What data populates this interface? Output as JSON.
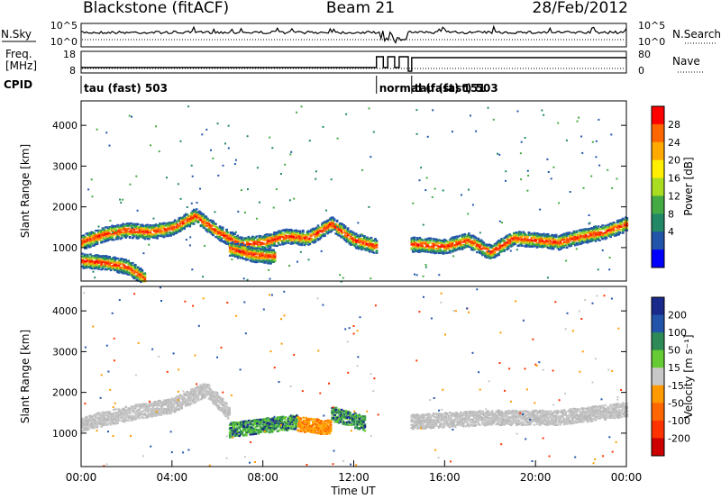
{
  "header": {
    "title": "Blackstone (fitACF)",
    "beam": "Beam 21",
    "date": "28/Feb/2012"
  },
  "chart_data": [
    {
      "type": "line",
      "title": "",
      "series": [
        {
          "name": "N.Sky",
          "style": "solid"
        },
        {
          "name": "N.Search",
          "style": "dotted"
        }
      ],
      "left_ticks": [
        "10^5",
        "10^0"
      ],
      "right_ticks": [
        "10^5",
        "10^0"
      ],
      "ylim": [
        1,
        100000
      ],
      "log_scale": true
    },
    {
      "type": "line",
      "series": [
        {
          "name": "Freq. [MHz]",
          "style": "solid",
          "segments": [
            {
              "x": [
                0.0,
                13.0
              ],
              "y": 10.5
            },
            {
              "x": [
                13.0,
                13.3
              ],
              "y": 16.5
            },
            {
              "x": [
                13.3,
                13.5
              ],
              "y": 10.5
            },
            {
              "x": [
                13.5,
                13.8
              ],
              "y": 16.5
            },
            {
              "x": [
                13.8,
                14.0
              ],
              "y": 10.5
            },
            {
              "x": [
                14.0,
                14.4
              ],
              "y": 16.5
            },
            {
              "x": [
                14.4,
                14.55
              ],
              "y": 8.5
            },
            {
              "x": [
                14.55,
                24.0
              ],
              "y": 16.0
            }
          ]
        },
        {
          "name": "Nave",
          "style": "dotted"
        }
      ],
      "left_label": [
        "Freq.",
        "[MHz]"
      ],
      "left_ticks": [
        "18",
        "8"
      ],
      "right_ticks": [
        "80",
        "0"
      ]
    },
    {
      "type": "table",
      "label": "CPID",
      "modes": [
        {
          "text": "tau (fast) 503",
          "start_hour": 0.0
        },
        {
          "text": "normal (fast) 151",
          "start_hour": 13.0
        },
        {
          "text": "tau (fast) 503",
          "start_hour": 14.55
        }
      ]
    },
    {
      "type": "heatmap",
      "quantity": "Power",
      "ylabel": "Slant Range [km]",
      "ylim": [
        180,
        4600
      ],
      "yticks": [
        1000,
        2000,
        3000,
        4000
      ],
      "colorbar": {
        "label": "Power [dB]",
        "ticks": [
          "28",
          "24",
          "20",
          "16",
          "12",
          "8",
          "4"
        ],
        "colors": [
          "#ff0000",
          "#ff6600",
          "#ffaa00",
          "#ffee00",
          "#aadd22",
          "#44aa44",
          "#228866",
          "#2255aa",
          "#0000ff"
        ]
      },
      "bands": [
        {
          "x": [
            0.0,
            1.0,
            2.0,
            3.0,
            4.0,
            5.0,
            6.0,
            7.0,
            8.0,
            9.0,
            10.0,
            11.0,
            12.0,
            13.0
          ],
          "y": [
            1150,
            1350,
            1450,
            1400,
            1500,
            1800,
            1400,
            1100,
            1150,
            1300,
            1250,
            1600,
            1200,
            1050
          ]
        },
        {
          "x": [
            0.0,
            1.0,
            2.0,
            2.8
          ],
          "y": [
            700,
            650,
            550,
            250
          ]
        },
        {
          "x": [
            6.5,
            7.5,
            8.5
          ],
          "y": [
            1000,
            850,
            800
          ]
        },
        {
          "x": [
            14.5,
            16.0,
            17.0,
            18.0,
            19.0,
            20.0,
            21.0,
            22.0,
            23.0,
            24.0
          ],
          "y": [
            1100,
            1050,
            1200,
            900,
            1250,
            1200,
            1150,
            1300,
            1400,
            1600
          ]
        }
      ]
    },
    {
      "type": "heatmap",
      "quantity": "Velocity",
      "ylabel": "Slant Range [km]",
      "xlabel": "Time UT",
      "ylim": [
        180,
        4600
      ],
      "yticks": [
        1000,
        2000,
        3000,
        4000
      ],
      "xlim": [
        0,
        24
      ],
      "xticks": [
        "00:00",
        "04:00",
        "08:00",
        "12:00",
        "16:00",
        "20:00",
        "00:00"
      ],
      "colorbar": {
        "label": "Velocity [m s⁻¹]",
        "ticks": [
          "200",
          "100",
          "50",
          "15",
          "-15",
          "-50",
          "-100",
          "-200"
        ],
        "colors": [
          "#1a2a8a",
          "#2255aa",
          "#2e8b57",
          "#66cc33",
          "#c8c8c8",
          "#ff9900",
          "#ff6600",
          "#ff3300",
          "#cc0000"
        ]
      },
      "bands": [
        {
          "x": [
            0.0,
            2.0,
            4.0,
            5.5,
            6.5
          ],
          "y": [
            1250,
            1500,
            1700,
            2100,
            1500
          ],
          "color": "gray"
        },
        {
          "x": [
            6.5,
            8.0,
            9.5
          ],
          "y": [
            1100,
            1200,
            1300
          ],
          "color": "green"
        },
        {
          "x": [
            9.5,
            11.0
          ],
          "y": [
            1250,
            1150
          ],
          "color": "orange"
        },
        {
          "x": [
            11.0,
            12.5
          ],
          "y": [
            1500,
            1250
          ],
          "color": "green"
        },
        {
          "x": [
            14.5,
            18.0,
            21.0,
            24.0
          ],
          "y": [
            1300,
            1400,
            1400,
            1600
          ],
          "color": "gray"
        }
      ]
    }
  ]
}
